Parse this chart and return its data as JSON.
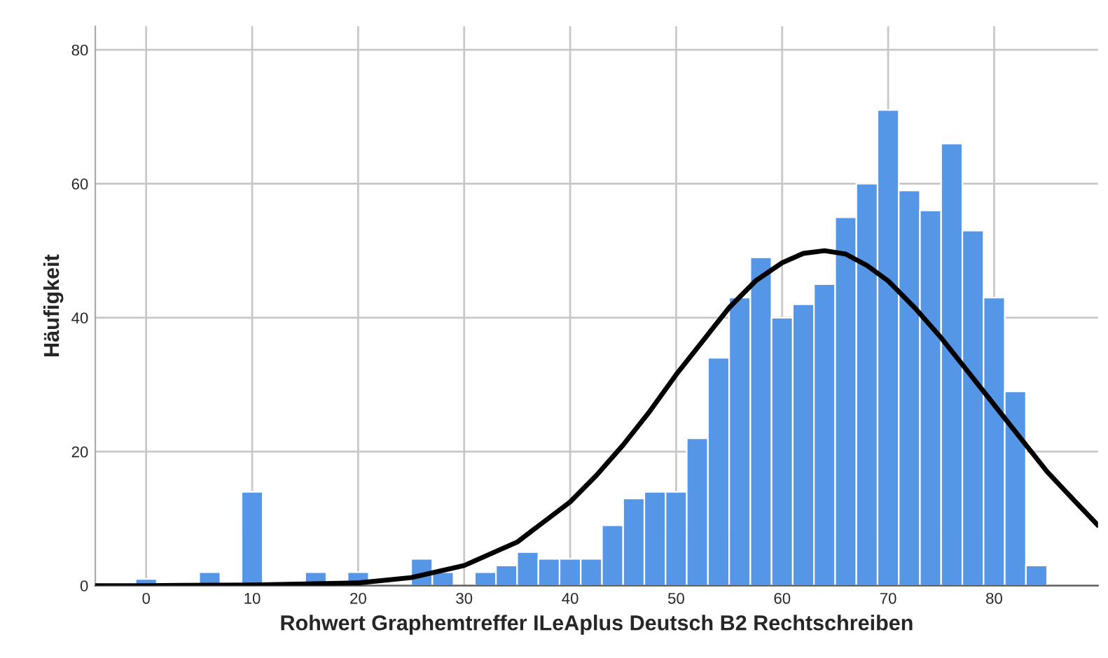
{
  "chart_data": {
    "type": "histogram",
    "xlabel": "Rohwert Graphemtreffer ILeAplus Deutsch B2 Rechtschreiben",
    "ylabel": "Häufigkeit",
    "series": [
      {
        "color": "#5596e6",
        "bins": [
          -1,
          1,
          3,
          5,
          7,
          9,
          11,
          13,
          15,
          17,
          19,
          21,
          23,
          25,
          27,
          29,
          31,
          33,
          35,
          37,
          39,
          41,
          43,
          45,
          47,
          49,
          51,
          53,
          55,
          57,
          59,
          61,
          63,
          65,
          67,
          69,
          71,
          73,
          75,
          77,
          79,
          81,
          83,
          85
        ],
        "values": [
          1,
          0,
          0,
          2,
          0,
          14,
          0,
          0,
          2,
          0,
          2,
          0,
          null,
          4,
          2,
          0,
          2,
          3,
          5,
          4,
          4,
          4,
          9,
          13,
          14,
          14,
          22,
          34,
          43,
          49,
          40,
          42,
          45,
          55,
          60,
          71,
          59,
          56,
          66,
          53,
          43,
          29,
          3
        ]
      },
      {
        "type": "line",
        "color": "#000000",
        "x": [
          -4.8,
          0,
          10,
          20,
          25,
          30,
          35,
          40,
          42.5,
          45,
          47.5,
          50,
          52.5,
          55,
          57.5,
          60,
          62,
          64,
          66,
          68,
          70,
          72.5,
          75,
          77.5,
          80,
          82.5,
          85,
          87.5,
          89.8
        ],
        "values": [
          0,
          0,
          0.1,
          0.4,
          1.2,
          3,
          6.5,
          12.5,
          16.5,
          21,
          26,
          31.5,
          36.5,
          41.5,
          45.5,
          48.2,
          49.6,
          50,
          49.5,
          47.8,
          45.5,
          41.5,
          37,
          32,
          27,
          22,
          17,
          12.8,
          9
        ]
      }
    ],
    "xlim": [
      -4.8,
      89.8
    ],
    "ylim": [
      0,
      83.5
    ],
    "xticks": [
      0,
      10,
      20,
      30,
      40,
      50,
      60,
      70,
      80
    ],
    "yticks": [
      0,
      20,
      40,
      60,
      80
    ],
    "grid": true
  }
}
